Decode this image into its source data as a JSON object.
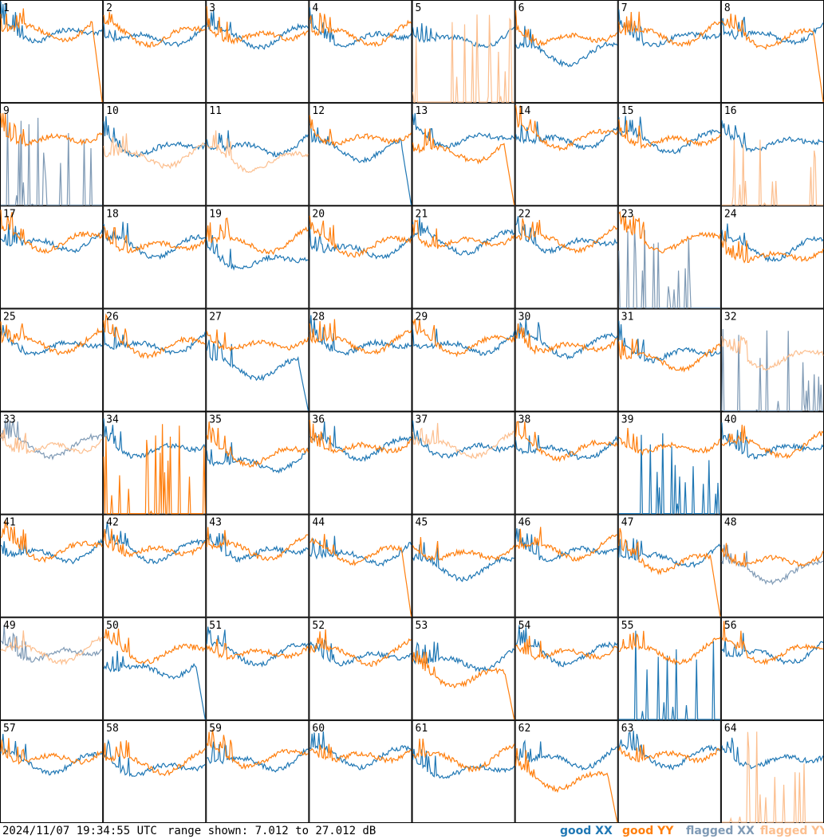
{
  "timestamp": "2024/11/07 19:34:55 UTC",
  "range_text": "range shown: 7.012 to 27.012 dB",
  "legend": [
    {
      "label": "good XX",
      "color": "#1f77b4"
    },
    {
      "label": "good YY",
      "color": "#ff7f0e"
    },
    {
      "label": "flagged XX",
      "color": "#7f9ab5"
    },
    {
      "label": "flagged YY",
      "color": "#fcbf8f"
    }
  ],
  "chart_data": {
    "type": "line",
    "grid": {
      "rows": 8,
      "cols": 8
    },
    "ylim": [
      7.012,
      27.012
    ],
    "units": "dB",
    "panels": [
      {
        "id": "1",
        "xx": "good",
        "yy": "good",
        "xx_level": 0.76,
        "yy_level": 0.78,
        "xx_drop": false,
        "yy_drop": true
      },
      {
        "id": "2",
        "xx": "good",
        "yy": "good",
        "xx_level": 0.72,
        "yy_level": 0.74,
        "xx_drop": false,
        "yy_drop": false
      },
      {
        "id": "3",
        "xx": "good",
        "yy": "good",
        "xx_level": 0.72,
        "yy_level": 0.74,
        "xx_drop": false,
        "yy_drop": false
      },
      {
        "id": "4",
        "xx": "good",
        "yy": "good",
        "xx_level": 0.72,
        "yy_level": 0.74,
        "xx_drop": false,
        "yy_drop": false
      },
      {
        "id": "5",
        "xx": "good",
        "yy": "flagged",
        "xx_level": 0.7,
        "yy_level": 0.0,
        "xx_drop": false,
        "yy_drop": false
      },
      {
        "id": "6",
        "xx": "good",
        "yy": "good",
        "xx_level": 0.55,
        "yy_level": 0.72,
        "xx_drop": false,
        "yy_drop": false
      },
      {
        "id": "7",
        "xx": "good",
        "yy": "good",
        "xx_level": 0.72,
        "yy_level": 0.74,
        "xx_drop": false,
        "yy_drop": false
      },
      {
        "id": "8",
        "xx": "good",
        "yy": "good",
        "xx_level": 0.74,
        "yy_level": 0.72,
        "xx_drop": false,
        "yy_drop": true
      },
      {
        "id": "9",
        "xx": "flagged",
        "yy": "good",
        "xx_level": 0.0,
        "yy_level": 0.74,
        "xx_drop": false,
        "yy_drop": false
      },
      {
        "id": "10",
        "xx": "good",
        "yy": "flagged",
        "xx_level": 0.65,
        "yy_level": 0.55,
        "xx_drop": false,
        "yy_drop": false
      },
      {
        "id": "11",
        "xx": "good",
        "yy": "flagged",
        "xx_level": 0.65,
        "yy_level": 0.52,
        "xx_drop": false,
        "yy_drop": false
      },
      {
        "id": "12",
        "xx": "good",
        "yy": "good",
        "xx_level": 0.62,
        "yy_level": 0.74,
        "xx_drop": true,
        "yy_drop": false
      },
      {
        "id": "13",
        "xx": "good",
        "yy": "good",
        "xx_level": 0.74,
        "yy_level": 0.6,
        "xx_drop": false,
        "yy_drop": true
      },
      {
        "id": "14",
        "xx": "good",
        "yy": "good",
        "xx_level": 0.72,
        "yy_level": 0.74,
        "xx_drop": false,
        "yy_drop": false
      },
      {
        "id": "15",
        "xx": "good",
        "yy": "good",
        "xx_level": 0.7,
        "yy_level": 0.72,
        "xx_drop": false,
        "yy_drop": false
      },
      {
        "id": "16",
        "xx": "good",
        "yy": "flagged",
        "xx_level": 0.7,
        "yy_level": 0.0,
        "xx_drop": false,
        "yy_drop": false
      },
      {
        "id": "17",
        "xx": "good",
        "yy": "good",
        "xx_level": 0.72,
        "yy_level": 0.74,
        "xx_drop": false,
        "yy_drop": false
      },
      {
        "id": "18",
        "xx": "good",
        "yy": "good",
        "xx_level": 0.68,
        "yy_level": 0.7,
        "xx_drop": false,
        "yy_drop": false
      },
      {
        "id": "19",
        "xx": "good",
        "yy": "good",
        "xx_level": 0.55,
        "yy_level": 0.72,
        "xx_drop": false,
        "yy_drop": false
      },
      {
        "id": "20",
        "xx": "good",
        "yy": "good",
        "xx_level": 0.66,
        "yy_level": 0.7,
        "xx_drop": false,
        "yy_drop": false
      },
      {
        "id": "21",
        "xx": "good",
        "yy": "good",
        "xx_level": 0.72,
        "yy_level": 0.74,
        "xx_drop": false,
        "yy_drop": false
      },
      {
        "id": "22",
        "xx": "good",
        "yy": "good",
        "xx_level": 0.72,
        "yy_level": 0.74,
        "xx_drop": false,
        "yy_drop": false
      },
      {
        "id": "23",
        "xx": "flagged",
        "yy": "good",
        "xx_level": 0.0,
        "yy_level": 0.74,
        "xx_drop": false,
        "yy_drop": false
      },
      {
        "id": "24",
        "xx": "good",
        "yy": "good",
        "xx_level": 0.66,
        "yy_level": 0.6,
        "xx_drop": false,
        "yy_drop": false
      },
      {
        "id": "25",
        "xx": "good",
        "yy": "good",
        "xx_level": 0.72,
        "yy_level": 0.74,
        "xx_drop": false,
        "yy_drop": false
      },
      {
        "id": "26",
        "xx": "good",
        "yy": "good",
        "xx_level": 0.72,
        "yy_level": 0.72,
        "xx_drop": false,
        "yy_drop": false
      },
      {
        "id": "27",
        "xx": "good",
        "yy": "good",
        "xx_level": 0.5,
        "yy_level": 0.74,
        "xx_drop": true,
        "yy_drop": false
      },
      {
        "id": "28",
        "xx": "good",
        "yy": "good",
        "xx_level": 0.72,
        "yy_level": 0.74,
        "xx_drop": false,
        "yy_drop": false
      },
      {
        "id": "29",
        "xx": "good",
        "yy": "good",
        "xx_level": 0.72,
        "yy_level": 0.74,
        "xx_drop": false,
        "yy_drop": false
      },
      {
        "id": "30",
        "xx": "good",
        "yy": "good",
        "xx_level": 0.72,
        "yy_level": 0.72,
        "xx_drop": false,
        "yy_drop": false
      },
      {
        "id": "31",
        "xx": "good",
        "yy": "good",
        "xx_level": 0.65,
        "yy_level": 0.58,
        "xx_drop": false,
        "yy_drop": false
      },
      {
        "id": "32",
        "xx": "flagged",
        "yy": "flagged",
        "xx_level": 0.0,
        "yy_level": 0.6,
        "xx_drop": false,
        "yy_drop": false
      },
      {
        "id": "33",
        "xx": "flagged",
        "yy": "flagged",
        "xx_level": 0.74,
        "yy_level": 0.74,
        "xx_drop": false,
        "yy_drop": false
      },
      {
        "id": "34",
        "xx": "good",
        "yy": "good",
        "xx_level": 0.72,
        "yy_level": 0.0,
        "xx_drop": false,
        "yy_drop": false
      },
      {
        "id": "35",
        "xx": "good",
        "yy": "good",
        "xx_level": 0.58,
        "yy_level": 0.66,
        "xx_drop": false,
        "yy_drop": false
      },
      {
        "id": "36",
        "xx": "good",
        "yy": "good",
        "xx_level": 0.72,
        "yy_level": 0.74,
        "xx_drop": false,
        "yy_drop": false
      },
      {
        "id": "37",
        "xx": "good",
        "yy": "flagged",
        "xx_level": 0.72,
        "yy_level": 0.74,
        "xx_drop": false,
        "yy_drop": false
      },
      {
        "id": "38",
        "xx": "good",
        "yy": "good",
        "xx_level": 0.7,
        "yy_level": 0.72,
        "xx_drop": false,
        "yy_drop": false
      },
      {
        "id": "39",
        "xx": "good",
        "yy": "good",
        "xx_level": 0.0,
        "yy_level": 0.74,
        "xx_drop": false,
        "yy_drop": false
      },
      {
        "id": "40",
        "xx": "good",
        "yy": "good",
        "xx_level": 0.72,
        "yy_level": 0.74,
        "xx_drop": false,
        "yy_drop": false
      },
      {
        "id": "41",
        "xx": "good",
        "yy": "good",
        "xx_level": 0.7,
        "yy_level": 0.74,
        "xx_drop": false,
        "yy_drop": false
      },
      {
        "id": "42",
        "xx": "good",
        "yy": "good",
        "xx_level": 0.72,
        "yy_level": 0.74,
        "xx_drop": false,
        "yy_drop": false
      },
      {
        "id": "43",
        "xx": "good",
        "yy": "good",
        "xx_level": 0.72,
        "yy_level": 0.74,
        "xx_drop": false,
        "yy_drop": false
      },
      {
        "id": "44",
        "xx": "good",
        "yy": "good",
        "xx_level": 0.68,
        "yy_level": 0.7,
        "xx_drop": false,
        "yy_drop": true
      },
      {
        "id": "45",
        "xx": "good",
        "yy": "good",
        "xx_level": 0.55,
        "yy_level": 0.7,
        "xx_drop": false,
        "yy_drop": false
      },
      {
        "id": "46",
        "xx": "good",
        "yy": "good",
        "xx_level": 0.72,
        "yy_level": 0.74,
        "xx_drop": false,
        "yy_drop": false
      },
      {
        "id": "47",
        "xx": "good",
        "yy": "good",
        "xx_level": 0.66,
        "yy_level": 0.62,
        "xx_drop": false,
        "yy_drop": true
      },
      {
        "id": "48",
        "xx": "flagged",
        "yy": "good",
        "xx_level": 0.52,
        "yy_level": 0.64,
        "xx_drop": false,
        "yy_drop": false
      },
      {
        "id": "49",
        "xx": "flagged",
        "yy": "flagged",
        "xx_level": 0.74,
        "yy_level": 0.74,
        "xx_drop": false,
        "yy_drop": false
      },
      {
        "id": "50",
        "xx": "good",
        "yy": "good",
        "xx_level": 0.58,
        "yy_level": 0.74,
        "xx_drop": true,
        "yy_drop": false
      },
      {
        "id": "51",
        "xx": "good",
        "yy": "good",
        "xx_level": 0.72,
        "yy_level": 0.74,
        "xx_drop": false,
        "yy_drop": false
      },
      {
        "id": "52",
        "xx": "good",
        "yy": "good",
        "xx_level": 0.7,
        "yy_level": 0.72,
        "xx_drop": false,
        "yy_drop": false
      },
      {
        "id": "53",
        "xx": "good",
        "yy": "good",
        "xx_level": 0.65,
        "yy_level": 0.5,
        "xx_drop": false,
        "yy_drop": true
      },
      {
        "id": "54",
        "xx": "good",
        "yy": "good",
        "xx_level": 0.72,
        "yy_level": 0.74,
        "xx_drop": false,
        "yy_drop": false
      },
      {
        "id": "55",
        "xx": "good",
        "yy": "good",
        "xx_level": 0.0,
        "yy_level": 0.74,
        "xx_drop": false,
        "yy_drop": false
      },
      {
        "id": "56",
        "xx": "good",
        "yy": "good",
        "xx_level": 0.72,
        "yy_level": 0.74,
        "xx_drop": false,
        "yy_drop": false
      },
      {
        "id": "57",
        "xx": "good",
        "yy": "good",
        "xx_level": 0.66,
        "yy_level": 0.72,
        "xx_drop": false,
        "yy_drop": false
      },
      {
        "id": "58",
        "xx": "good",
        "yy": "good",
        "xx_level": 0.62,
        "yy_level": 0.66,
        "xx_drop": false,
        "yy_drop": false
      },
      {
        "id": "59",
        "xx": "good",
        "yy": "good",
        "xx_level": 0.68,
        "yy_level": 0.72,
        "xx_drop": false,
        "yy_drop": false
      },
      {
        "id": "60",
        "xx": "good",
        "yy": "good",
        "xx_level": 0.72,
        "yy_level": 0.74,
        "xx_drop": false,
        "yy_drop": false
      },
      {
        "id": "61",
        "xx": "good",
        "yy": "good",
        "xx_level": 0.6,
        "yy_level": 0.7,
        "xx_drop": false,
        "yy_drop": false
      },
      {
        "id": "62",
        "xx": "good",
        "yy": "good",
        "xx_level": 0.7,
        "yy_level": 0.5,
        "xx_drop": false,
        "yy_drop": true
      },
      {
        "id": "63",
        "xx": "good",
        "yy": "good",
        "xx_level": 0.72,
        "yy_level": 0.74,
        "xx_drop": false,
        "yy_drop": false
      },
      {
        "id": "64",
        "xx": "good",
        "yy": "flagged",
        "xx_level": 0.7,
        "yy_level": 0.0,
        "xx_drop": false,
        "yy_drop": false
      }
    ]
  }
}
